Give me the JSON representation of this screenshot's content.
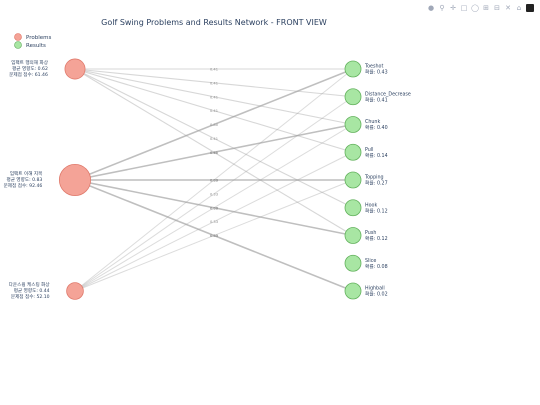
{
  "chart_data": {
    "type": "network",
    "title": "Golf Swing Problems and Results Network - FRONT VIEW",
    "legend": {
      "placement": "top-left",
      "entries": [
        {
          "name": "Problems",
          "color": "#f4a397"
        },
        {
          "name": "Results",
          "color": "#a8e6a3"
        }
      ]
    },
    "problems": [
      {
        "name": "임팩트 행의해 화상",
        "influence_label": "평균 영향도: 0.62",
        "score_label": "문제점 점수: 61.46",
        "score": 61.46
      },
      {
        "name": "임팩트 이해 지목",
        "influence_label": "평균 영향도: 0.83",
        "score_label": "문제점 점수: 92.46",
        "score": 92.46
      },
      {
        "name": "다운스윙 케스팅 화상",
        "influence_label": "평균 영향도: 0.44",
        "score_label": "문제점 점수: 52.10",
        "score": 52.1
      }
    ],
    "results": [
      {
        "name": "Toeshot",
        "prob_label": "확률: 0.43",
        "prob": 0.43
      },
      {
        "name": "Distance_Decrease",
        "prob_label": "확률: 0.41",
        "prob": 0.41
      },
      {
        "name": "Chunk",
        "prob_label": "확률: 0.40",
        "prob": 0.4
      },
      {
        "name": "Pull",
        "prob_label": "확률: 0.14",
        "prob": 0.14
      },
      {
        "name": "Topping",
        "prob_label": "확률: 0.27",
        "prob": 0.27
      },
      {
        "name": "Hook",
        "prob_label": "확률: 0.12",
        "prob": 0.12
      },
      {
        "name": "Push",
        "prob_label": "확률: 0.12",
        "prob": 0.12
      },
      {
        "name": "Slice",
        "prob_label": "확률: 0.08",
        "prob": 0.08
      },
      {
        "name": "Highball",
        "prob_label": "확률: 0.02",
        "prob": 0.02
      }
    ],
    "edges": [
      {
        "from": 0,
        "to": 0,
        "weight": 0.41
      },
      {
        "from": 0,
        "to": 1,
        "weight": 0.41
      },
      {
        "from": 0,
        "to": 2,
        "weight": 0.41
      },
      {
        "from": 0,
        "to": 3,
        "weight": 0.41
      },
      {
        "from": 0,
        "to": 5,
        "weight": 0.41
      },
      {
        "from": 0,
        "to": 6,
        "weight": 0.41
      },
      {
        "from": 1,
        "to": 0,
        "weight": 0.8
      },
      {
        "from": 1,
        "to": 2,
        "weight": 0.8
      },
      {
        "from": 1,
        "to": 4,
        "weight": 0.8
      },
      {
        "from": 1,
        "to": 6,
        "weight": 0.8
      },
      {
        "from": 1,
        "to": 8,
        "weight": 0.8
      },
      {
        "from": 2,
        "to": 0,
        "weight": 0.33
      },
      {
        "from": 2,
        "to": 1,
        "weight": 0.33
      },
      {
        "from": 2,
        "to": 2,
        "weight": 0.33
      },
      {
        "from": 2,
        "to": 3,
        "weight": 0.33
      },
      {
        "from": 2,
        "to": 4,
        "weight": 0.33
      }
    ]
  },
  "toolbar": {
    "icons": [
      "camera-icon",
      "zoom-icon",
      "pan-icon",
      "box-select-icon",
      "lasso-icon",
      "zoom-in-icon",
      "zoom-out-icon",
      "autoscale-icon",
      "reset-icon",
      "plotly-logo"
    ]
  }
}
